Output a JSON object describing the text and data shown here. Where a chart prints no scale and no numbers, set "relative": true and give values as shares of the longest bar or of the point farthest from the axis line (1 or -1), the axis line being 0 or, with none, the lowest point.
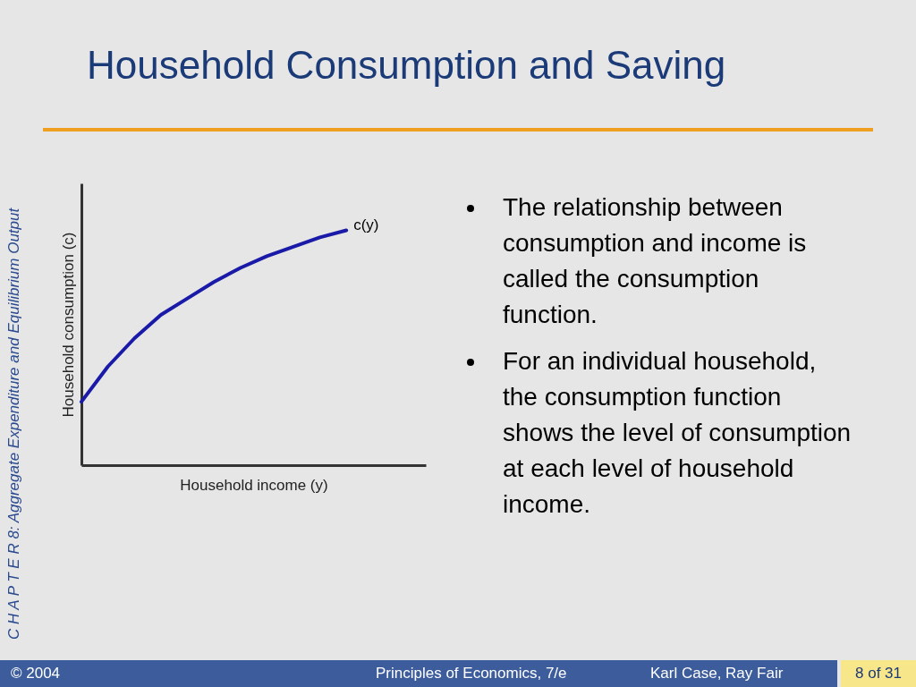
{
  "chart_data": {
    "type": "line",
    "title": "Household Consumption and Saving",
    "xlabel": "Household income (y)",
    "ylabel": "Household consumption (c)",
    "relative": true,
    "categories": [
      null,
      null,
      null,
      null,
      null,
      null,
      null,
      null,
      null,
      null,
      null,
      null,
      null,
      null
    ],
    "series": [
      {
        "color": "#1a1aa8",
        "values": [
          0.27,
          0.42,
          0.54,
          0.64,
          0.71,
          0.78,
          0.84,
          0.89,
          0.93,
          0.97,
          1.0,
          null,
          null,
          null
        ]
      }
    ],
    "annotations": [
      "c(y)",
      "The relationship between consumption and income is called the consumption function.",
      "For an individual household, the consumption function shows the level of consumption at each level of household income.",
      "C H A P T E R  8:  Aggregate Expenditure and Equilibrium Output",
      "© 2004",
      "Principles of Economics, 7/e",
      "Karl Case, Ray Fair",
      "8 of 31"
    ]
  }
}
